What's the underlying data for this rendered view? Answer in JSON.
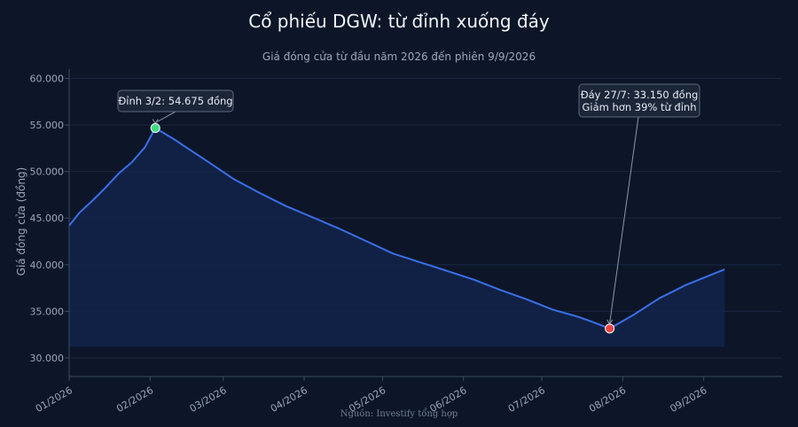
{
  "chart_data": {
    "type": "area",
    "title": "Cổ phiếu DGW: từ đỉnh xuống đáy",
    "subtitle": "Giá đóng cửa từ đầu năm 2026 đến phiên 9/9/2026",
    "ylabel": "Giá đóng cửa (đồng)",
    "xlabel": "",
    "source": "Nguồn: Investify tổng hợp",
    "ylim": [
      28000,
      61000
    ],
    "xlim": [
      "2026-01-01",
      "2026-10-01"
    ],
    "yticks": [
      30000,
      35000,
      40000,
      45000,
      50000,
      55000,
      60000
    ],
    "ytick_labels": [
      "30.000",
      "35.000",
      "40.000",
      "45.000",
      "50.000",
      "55.000",
      "60.000"
    ],
    "xticks": [
      "2026-01-01",
      "2026-02-01",
      "2026-03-01",
      "2026-04-01",
      "2026-05-01",
      "2026-06-01",
      "2026-07-01",
      "2026-08-01",
      "2026-09-01"
    ],
    "xtick_labels": [
      "01/2026",
      "02/2026",
      "03/2026",
      "04/2026",
      "05/2026",
      "06/2026",
      "07/2026",
      "08/2026",
      "09/2026"
    ],
    "grid": true,
    "colors": {
      "line": "#3a6fe8",
      "fill": "#13234a",
      "peak": "#3ddc84",
      "trough": "#e84545"
    },
    "series": [
      {
        "x": [
          "2026-01-01",
          "2026-01-05",
          "2026-01-10",
          "2026-01-15",
          "2026-01-20",
          "2026-01-25",
          "2026-01-30",
          "2026-02-03",
          "2026-02-10",
          "2026-02-17",
          "2026-02-24",
          "2026-03-05",
          "2026-03-15",
          "2026-03-25",
          "2026-04-05",
          "2026-04-15",
          "2026-04-25",
          "2026-05-05",
          "2026-05-15",
          "2026-05-25",
          "2026-06-05",
          "2026-06-15",
          "2026-06-25",
          "2026-07-05",
          "2026-07-10",
          "2026-07-15",
          "2026-07-20",
          "2026-07-27",
          "2026-08-05",
          "2026-08-15",
          "2026-08-25",
          "2026-09-01",
          "2026-09-09"
        ],
        "y": [
          44200,
          45600,
          46900,
          48300,
          49800,
          51000,
          52600,
          54675,
          53500,
          52200,
          50900,
          49200,
          47700,
          46300,
          45000,
          43800,
          42500,
          41200,
          40300,
          39400,
          38400,
          37300,
          36300,
          35200,
          34800,
          34400,
          33900,
          33150,
          34600,
          36400,
          37800,
          38600,
          39500
        ]
      }
    ],
    "annotations": [
      {
        "name": "peak",
        "x": "2026-02-03",
        "y": 54675,
        "text": [
          "Đỉnh 3/2: 54.675 đồng"
        ]
      },
      {
        "name": "trough",
        "x": "2026-07-27",
        "y": 33150,
        "text": [
          "Đáy 27/7: 33.150 đồng",
          "Giảm hơn 39% từ đỉnh"
        ]
      }
    ]
  }
}
